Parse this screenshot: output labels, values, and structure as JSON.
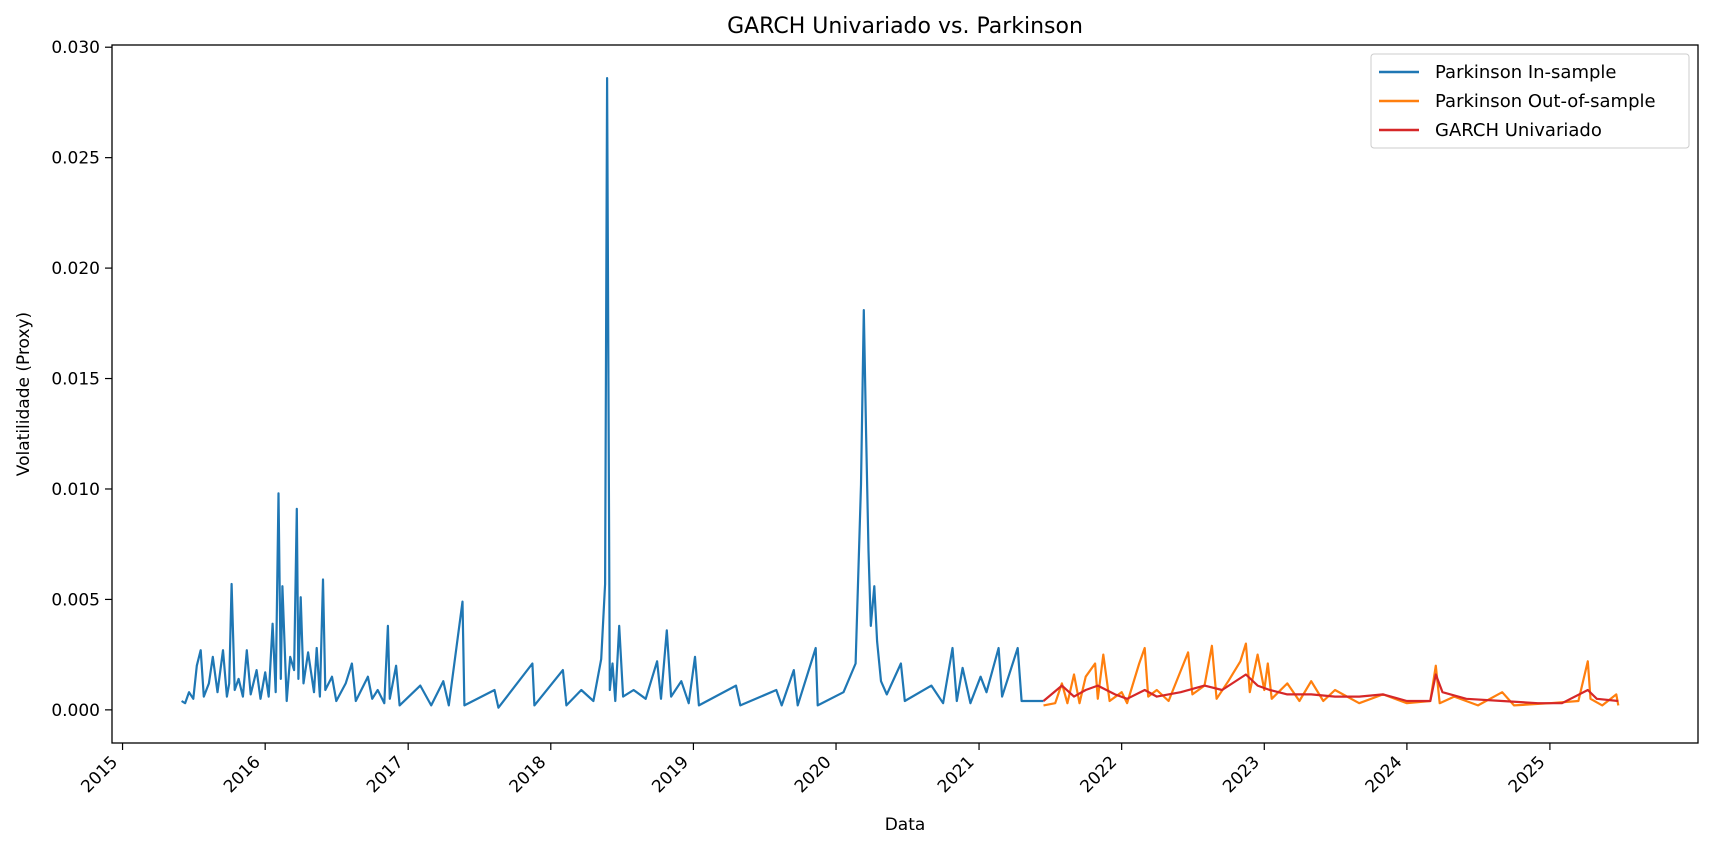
{
  "chart_data": {
    "type": "line",
    "title": "GARCH Univariado vs. Parkinson",
    "xlabel": "Data",
    "ylabel": "Volatilidade (Proxy)",
    "xlim": [
      "2014-12-05",
      "2026-01-15"
    ],
    "ylim": [
      -0.0015,
      0.0301
    ],
    "x_ticks": [
      "2015-01-01",
      "2016-01-01",
      "2017-01-01",
      "2018-01-01",
      "2019-01-01",
      "2020-01-01",
      "2021-01-01",
      "2022-01-01",
      "2023-01-01",
      "2024-01-01",
      "2025-01-01"
    ],
    "x_tick_labels": [
      "2015",
      "2016",
      "2017",
      "2018",
      "2019",
      "2020",
      "2021",
      "2022",
      "2023",
      "2024",
      "2025"
    ],
    "y_ticks": [
      0,
      0.005,
      0.01,
      0.015,
      0.02,
      0.025,
      0.03
    ],
    "y_tick_labels": [
      "0.000",
      "0.005",
      "0.010",
      "0.015",
      "0.020",
      "0.025",
      "0.030"
    ],
    "legend_position": "top-right",
    "grid": false,
    "series": [
      {
        "name": "Parkinson In-sample",
        "color": "#1f77b4",
        "points": [
          [
            "2015-06-01",
            0.0004
          ],
          [
            "2015-06-10",
            0.0003
          ],
          [
            "2015-06-20",
            0.0008
          ],
          [
            "2015-07-01",
            0.0005
          ],
          [
            "2015-07-10",
            0.002
          ],
          [
            "2015-07-20",
            0.0027
          ],
          [
            "2015-07-28",
            0.0006
          ],
          [
            "2015-08-10",
            0.0012
          ],
          [
            "2015-08-20",
            0.0024
          ],
          [
            "2015-09-01",
            0.0008
          ],
          [
            "2015-09-15",
            0.0027
          ],
          [
            "2015-09-25",
            0.0006
          ],
          [
            "2015-10-01",
            0.0012
          ],
          [
            "2015-10-07",
            0.0057
          ],
          [
            "2015-10-15",
            0.0009
          ],
          [
            "2015-10-25",
            0.0014
          ],
          [
            "2015-11-05",
            0.0006
          ],
          [
            "2015-11-15",
            0.0027
          ],
          [
            "2015-11-25",
            0.0007
          ],
          [
            "2015-12-10",
            0.0018
          ],
          [
            "2015-12-20",
            0.0005
          ],
          [
            "2016-01-01",
            0.0017
          ],
          [
            "2016-01-10",
            0.0006
          ],
          [
            "2016-01-20",
            0.0039
          ],
          [
            "2016-01-28",
            0.0008
          ],
          [
            "2016-02-04",
            0.0098
          ],
          [
            "2016-02-10",
            0.0014
          ],
          [
            "2016-02-14",
            0.0056
          ],
          [
            "2016-02-25",
            0.0004
          ],
          [
            "2016-03-05",
            0.0024
          ],
          [
            "2016-03-15",
            0.0018
          ],
          [
            "2016-03-22",
            0.0091
          ],
          [
            "2016-03-26",
            0.0014
          ],
          [
            "2016-04-01",
            0.0051
          ],
          [
            "2016-04-08",
            0.0012
          ],
          [
            "2016-04-20",
            0.0026
          ],
          [
            "2016-05-05",
            0.0008
          ],
          [
            "2016-05-12",
            0.0028
          ],
          [
            "2016-05-20",
            0.0006
          ],
          [
            "2016-05-28",
            0.0059
          ],
          [
            "2016-06-03",
            0.0009
          ],
          [
            "2016-06-20",
            0.0015
          ],
          [
            "2016-07-01",
            0.0004
          ],
          [
            "2016-07-25",
            0.0012
          ],
          [
            "2016-08-10",
            0.0021
          ],
          [
            "2016-08-20",
            0.0004
          ],
          [
            "2016-09-20",
            0.0015
          ],
          [
            "2016-10-01",
            0.0005
          ],
          [
            "2016-10-15",
            0.0009
          ],
          [
            "2016-11-01",
            0.0003
          ],
          [
            "2016-11-10",
            0.0038
          ],
          [
            "2016-11-15",
            0.0005
          ],
          [
            "2016-12-01",
            0.002
          ],
          [
            "2016-12-10",
            0.0002
          ],
          [
            "2017-02-01",
            0.0011
          ],
          [
            "2017-03-01",
            0.0002
          ],
          [
            "2017-04-01",
            0.0013
          ],
          [
            "2017-04-15",
            0.0002
          ],
          [
            "2017-05-20",
            0.0049
          ],
          [
            "2017-05-25",
            0.0002
          ],
          [
            "2017-08-10",
            0.0009
          ],
          [
            "2017-08-20",
            0.0001
          ],
          [
            "2017-11-15",
            0.0021
          ],
          [
            "2017-11-20",
            0.0002
          ],
          [
            "2018-02-01",
            0.0018
          ],
          [
            "2018-02-10",
            0.0002
          ],
          [
            "2018-03-20",
            0.0009
          ],
          [
            "2018-04-20",
            0.0004
          ],
          [
            "2018-05-10",
            0.0023
          ],
          [
            "2018-05-20",
            0.0057
          ],
          [
            "2018-05-25",
            0.0286
          ],
          [
            "2018-06-01",
            0.0009
          ],
          [
            "2018-06-08",
            0.0021
          ],
          [
            "2018-06-15",
            0.0004
          ],
          [
            "2018-06-25",
            0.0038
          ],
          [
            "2018-07-05",
            0.0006
          ],
          [
            "2018-08-01",
            0.0009
          ],
          [
            "2018-09-01",
            0.0005
          ],
          [
            "2018-09-30",
            0.0022
          ],
          [
            "2018-10-10",
            0.0005
          ],
          [
            "2018-10-25",
            0.0036
          ],
          [
            "2018-11-05",
            0.0006
          ],
          [
            "2018-12-01",
            0.0013
          ],
          [
            "2018-12-20",
            0.0003
          ],
          [
            "2019-01-05",
            0.0024
          ],
          [
            "2019-01-15",
            0.0002
          ],
          [
            "2019-04-20",
            0.0011
          ],
          [
            "2019-05-01",
            0.0002
          ],
          [
            "2019-08-01",
            0.0009
          ],
          [
            "2019-08-15",
            0.0002
          ],
          [
            "2019-09-15",
            0.0018
          ],
          [
            "2019-09-25",
            0.0002
          ],
          [
            "2019-11-10",
            0.0028
          ],
          [
            "2019-11-15",
            0.0002
          ],
          [
            "2020-01-20",
            0.0008
          ],
          [
            "2020-02-20",
            0.0021
          ],
          [
            "2020-03-05",
            0.0102
          ],
          [
            "2020-03-12",
            0.0181
          ],
          [
            "2020-03-18",
            0.0125
          ],
          [
            "2020-03-24",
            0.0072
          ],
          [
            "2020-03-30",
            0.0038
          ],
          [
            "2020-04-08",
            0.0056
          ],
          [
            "2020-04-15",
            0.0031
          ],
          [
            "2020-04-25",
            0.0013
          ],
          [
            "2020-05-10",
            0.0007
          ],
          [
            "2020-06-15",
            0.0021
          ],
          [
            "2020-06-25",
            0.0004
          ],
          [
            "2020-09-01",
            0.0011
          ],
          [
            "2020-10-01",
            0.0003
          ],
          [
            "2020-10-25",
            0.0028
          ],
          [
            "2020-11-05",
            0.0004
          ],
          [
            "2020-11-20",
            0.0019
          ],
          [
            "2020-12-10",
            0.0003
          ],
          [
            "2021-01-05",
            0.0015
          ],
          [
            "2021-01-20",
            0.0008
          ],
          [
            "2021-02-20",
            0.0028
          ],
          [
            "2021-03-01",
            0.0006
          ],
          [
            "2021-04-10",
            0.0028
          ],
          [
            "2021-04-20",
            0.0004
          ],
          [
            "2021-06-15",
            0.0004
          ]
        ]
      },
      {
        "name": "Parkinson Out-of-sample",
        "color": "#ff7f0e",
        "points": [
          [
            "2021-06-15",
            0.0002
          ],
          [
            "2021-07-15",
            0.0003
          ],
          [
            "2021-08-01",
            0.0012
          ],
          [
            "2021-08-15",
            0.0003
          ],
          [
            "2021-09-01",
            0.0016
          ],
          [
            "2021-09-15",
            0.0003
          ],
          [
            "2021-10-01",
            0.0015
          ],
          [
            "2021-10-25",
            0.0021
          ],
          [
            "2021-11-01",
            0.0005
          ],
          [
            "2021-11-15",
            0.0025
          ],
          [
            "2021-12-01",
            0.0004
          ],
          [
            "2022-01-01",
            0.0008
          ],
          [
            "2022-01-15",
            0.0003
          ],
          [
            "2022-02-15",
            0.0021
          ],
          [
            "2022-03-01",
            0.0028
          ],
          [
            "2022-03-10",
            0.0006
          ],
          [
            "2022-04-01",
            0.0009
          ],
          [
            "2022-05-01",
            0.0004
          ],
          [
            "2022-06-20",
            0.0026
          ],
          [
            "2022-07-01",
            0.0007
          ],
          [
            "2022-08-01",
            0.0011
          ],
          [
            "2022-08-20",
            0.0029
          ],
          [
            "2022-09-01",
            0.0005
          ],
          [
            "2022-10-01",
            0.0013
          ],
          [
            "2022-11-01",
            0.0022
          ],
          [
            "2022-11-15",
            0.003
          ],
          [
            "2022-11-25",
            0.0008
          ],
          [
            "2022-12-15",
            0.0025
          ],
          [
            "2023-01-01",
            0.0009
          ],
          [
            "2023-01-10",
            0.0021
          ],
          [
            "2023-01-20",
            0.0005
          ],
          [
            "2023-03-01",
            0.0012
          ],
          [
            "2023-04-01",
            0.0004
          ],
          [
            "2023-05-01",
            0.0013
          ],
          [
            "2023-06-01",
            0.0004
          ],
          [
            "2023-07-01",
            0.0009
          ],
          [
            "2023-09-01",
            0.0003
          ],
          [
            "2023-11-01",
            0.0007
          ],
          [
            "2024-01-01",
            0.0003
          ],
          [
            "2024-03-01",
            0.0004
          ],
          [
            "2024-03-15",
            0.002
          ],
          [
            "2024-03-25",
            0.0003
          ],
          [
            "2024-05-01",
            0.0006
          ],
          [
            "2024-07-01",
            0.0002
          ],
          [
            "2024-09-01",
            0.0008
          ],
          [
            "2024-10-01",
            0.0002
          ],
          [
            "2025-01-01",
            0.0003
          ],
          [
            "2025-03-15",
            0.0004
          ],
          [
            "2025-04-08",
            0.0022
          ],
          [
            "2025-04-15",
            0.0005
          ],
          [
            "2025-05-15",
            0.0002
          ],
          [
            "2025-06-20",
            0.0007
          ],
          [
            "2025-06-25",
            0.0002
          ]
        ]
      },
      {
        "name": "GARCH Univariado",
        "color": "#d62728",
        "points": [
          [
            "2021-06-15",
            0.0004
          ],
          [
            "2021-08-01",
            0.0011
          ],
          [
            "2021-09-01",
            0.0006
          ],
          [
            "2021-10-01",
            0.0009
          ],
          [
            "2021-11-01",
            0.0011
          ],
          [
            "2021-12-15",
            0.0007
          ],
          [
            "2022-01-15",
            0.0005
          ],
          [
            "2022-03-01",
            0.0009
          ],
          [
            "2022-04-01",
            0.0006
          ],
          [
            "2022-06-01",
            0.0008
          ],
          [
            "2022-08-01",
            0.0011
          ],
          [
            "2022-09-15",
            0.0009
          ],
          [
            "2022-11-15",
            0.0016
          ],
          [
            "2022-12-15",
            0.0011
          ],
          [
            "2023-01-15",
            0.0009
          ],
          [
            "2023-03-01",
            0.0007
          ],
          [
            "2023-05-01",
            0.0007
          ],
          [
            "2023-07-01",
            0.0006
          ],
          [
            "2023-09-01",
            0.0006
          ],
          [
            "2023-11-01",
            0.0007
          ],
          [
            "2024-01-01",
            0.0004
          ],
          [
            "2024-03-01",
            0.0004
          ],
          [
            "2024-03-15",
            0.0016
          ],
          [
            "2024-04-01",
            0.0008
          ],
          [
            "2024-06-01",
            0.0005
          ],
          [
            "2024-09-01",
            0.0004
          ],
          [
            "2024-12-01",
            0.0003
          ],
          [
            "2025-02-01",
            0.0003
          ],
          [
            "2025-04-08",
            0.0009
          ],
          [
            "2025-05-01",
            0.0005
          ],
          [
            "2025-06-25",
            0.0004
          ]
        ]
      }
    ]
  }
}
